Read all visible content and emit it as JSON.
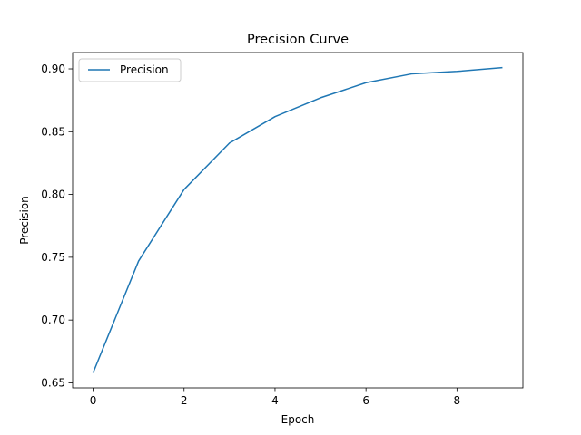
{
  "chart_data": {
    "type": "line",
    "title": "Precision Curve",
    "xlabel": "Epoch",
    "ylabel": "Precision",
    "xlim": [
      -0.45,
      9.45
    ],
    "ylim": [
      0.646,
      0.913
    ],
    "xticks": [
      0,
      2,
      4,
      6,
      8
    ],
    "xtick_labels": [
      "0",
      "2",
      "4",
      "6",
      "8"
    ],
    "yticks": [
      0.65,
      0.7,
      0.75,
      0.8,
      0.85,
      0.9
    ],
    "ytick_labels": [
      "0.65",
      "0.70",
      "0.75",
      "0.80",
      "0.85",
      "0.90"
    ],
    "grid": false,
    "legend_position": "top-left",
    "series": [
      {
        "name": "Precision",
        "color": "#1f77b4",
        "x": [
          0,
          1,
          2,
          3,
          4,
          5,
          6,
          7,
          8,
          9
        ],
        "values": [
          0.658,
          0.747,
          0.804,
          0.841,
          0.862,
          0.877,
          0.889,
          0.896,
          0.898,
          0.901
        ]
      }
    ]
  }
}
